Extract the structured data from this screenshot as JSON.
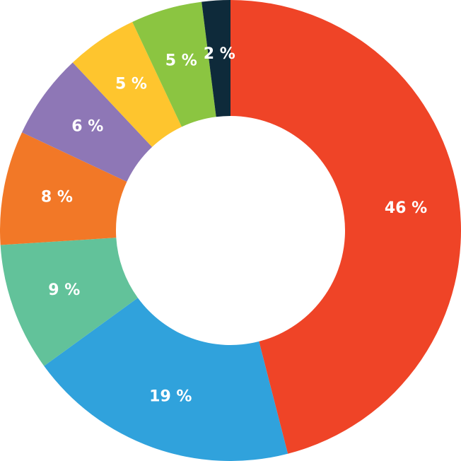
{
  "chart_data": {
    "type": "pie",
    "title": "",
    "slices": [
      {
        "value": 46,
        "label": "46 %",
        "color": "#EF4427"
      },
      {
        "value": 19,
        "label": "19 %",
        "color": "#30A2DC"
      },
      {
        "value": 9,
        "label": "9 %",
        "color": "#62C29A"
      },
      {
        "value": 8,
        "label": "8 %",
        "color": "#F27827"
      },
      {
        "value": 6,
        "label": "6 %",
        "color": "#8E77B6"
      },
      {
        "value": 5,
        "label": "5 %",
        "color": "#FEC52E"
      },
      {
        "value": 5,
        "label": "5 %",
        "color": "#8BC541"
      },
      {
        "value": 2,
        "label": "2 %",
        "color": "#0E2A3A",
        "label_dark": true
      }
    ],
    "legend": "none",
    "style": "donut"
  }
}
